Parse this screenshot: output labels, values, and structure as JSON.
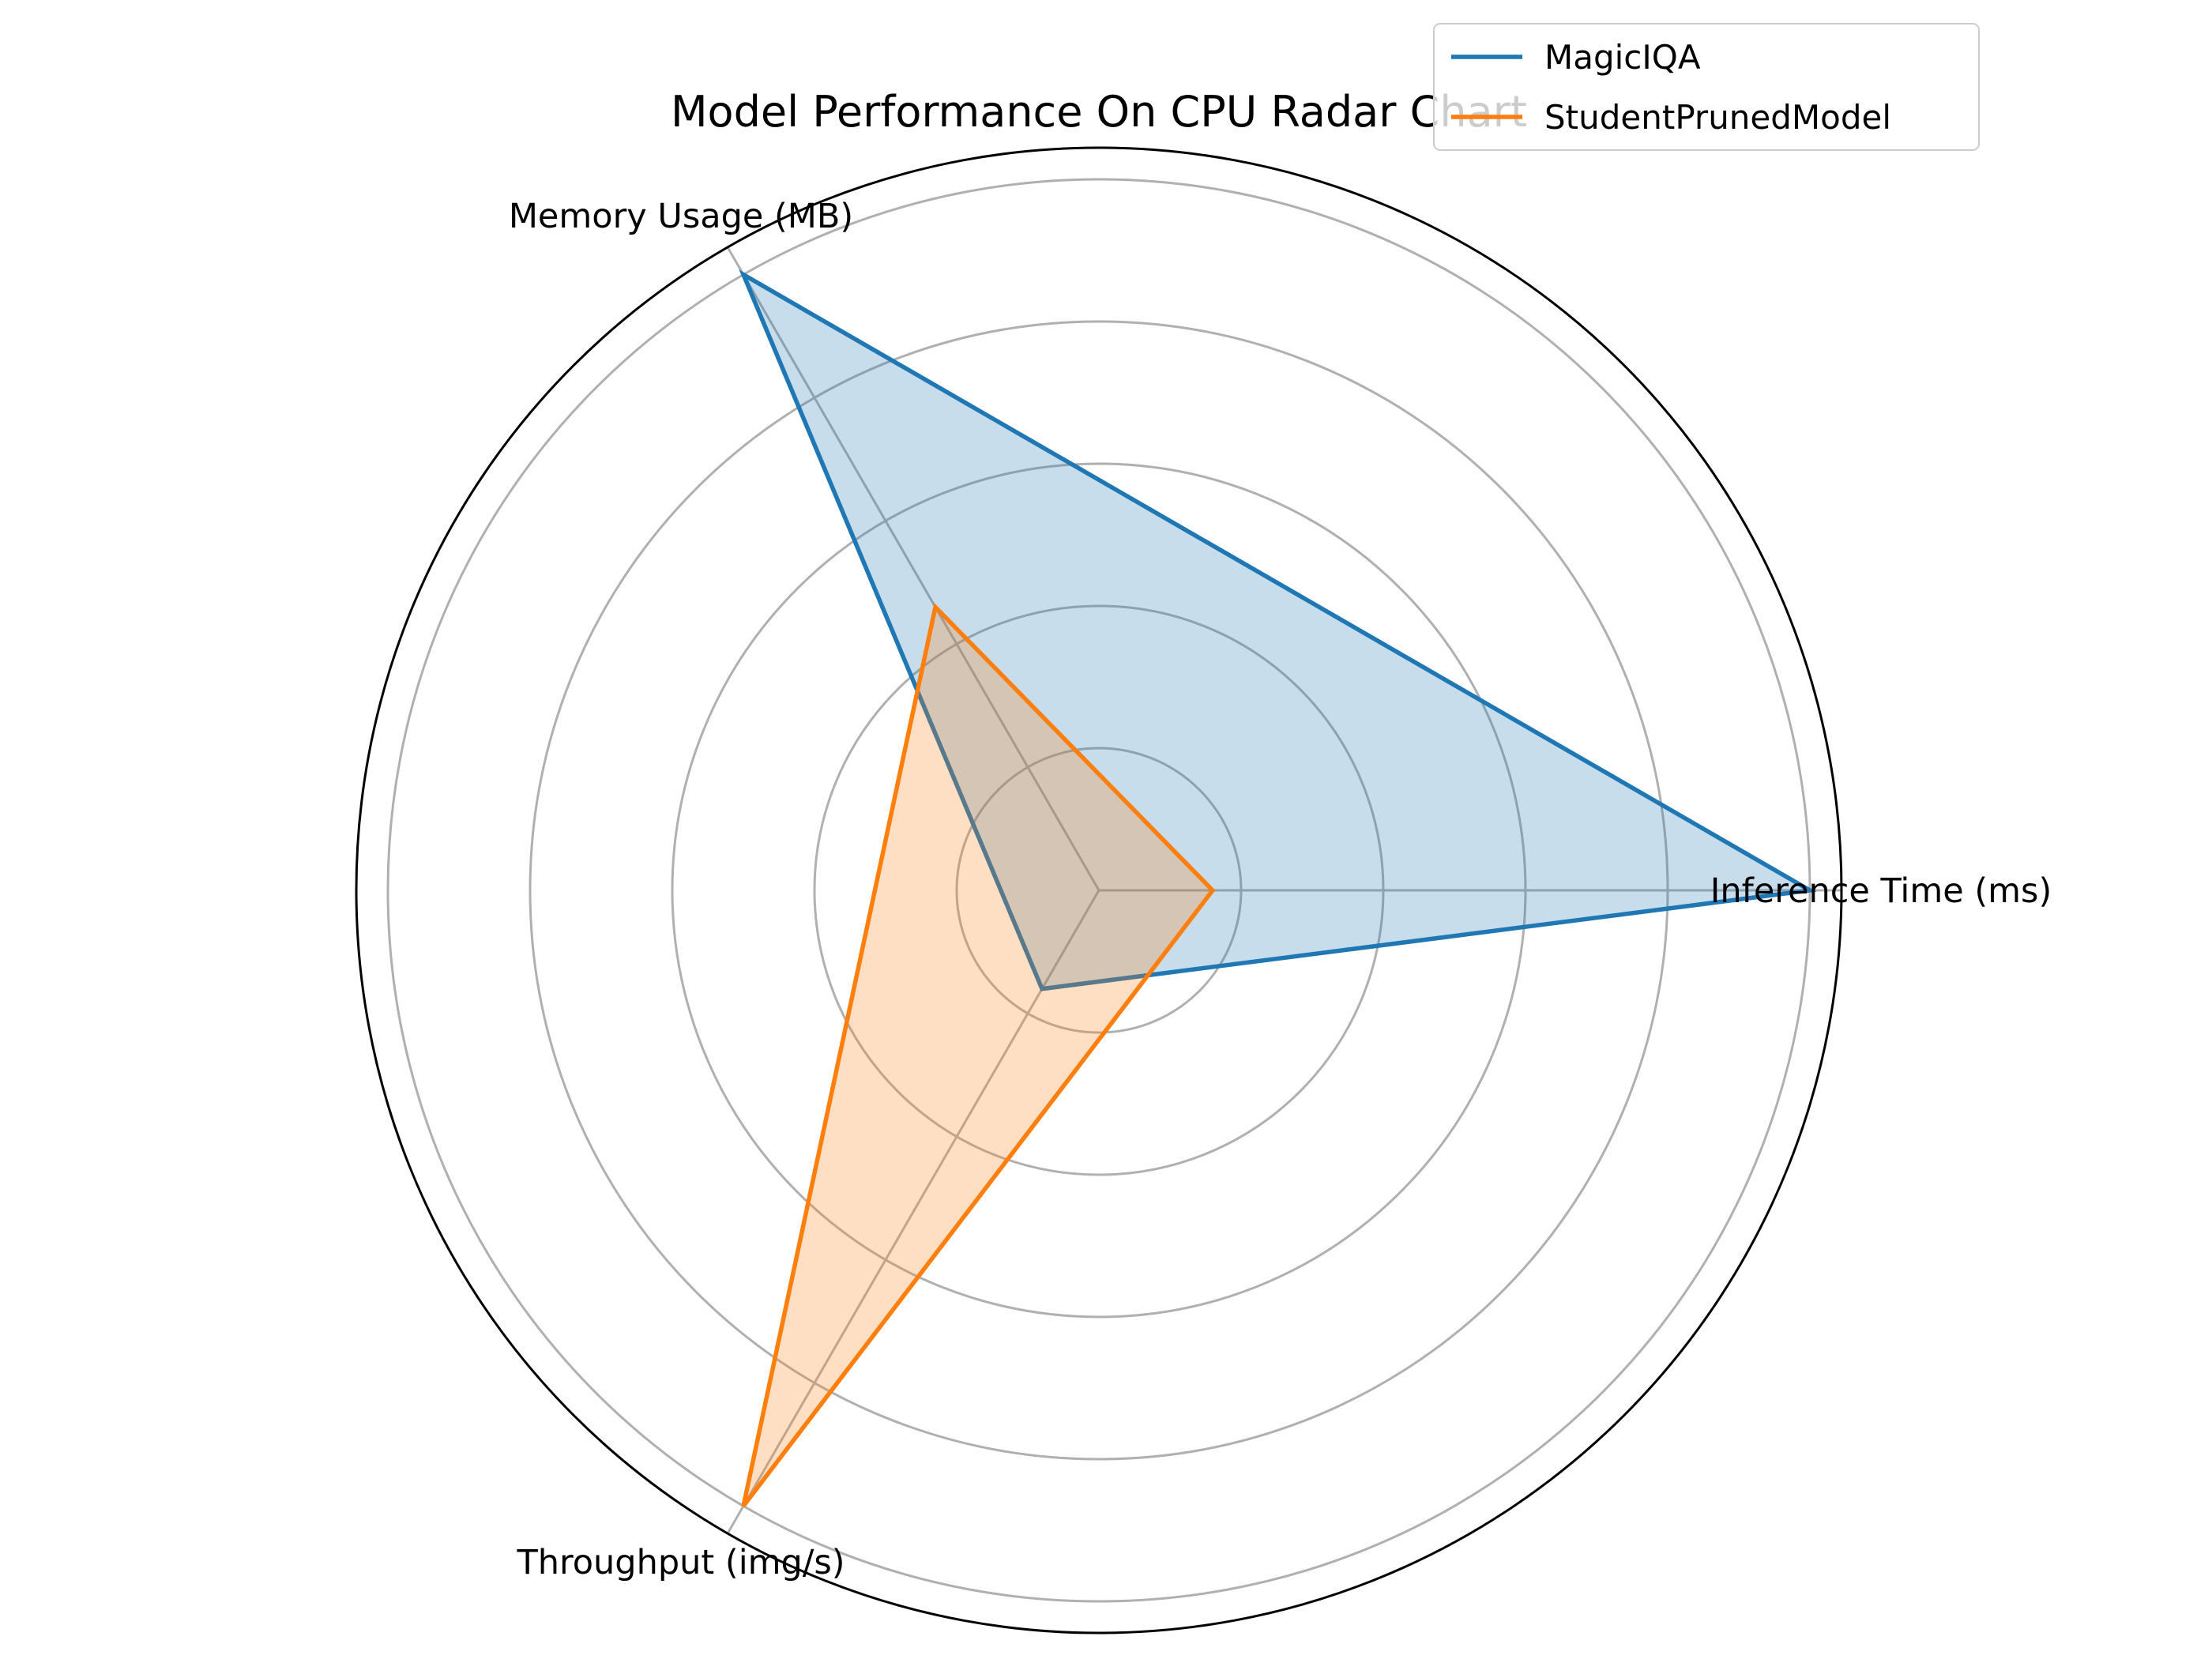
{
  "chart_data": {
    "type": "radar",
    "title": "Model Performance On CPU Radar Chart",
    "axes": [
      "Inference Time (ms)",
      "Memory Usage (MB)",
      "Throughput (img/s)"
    ],
    "rlim": [
      0,
      1
    ],
    "grid": true,
    "legend_position": "top-right",
    "series": [
      {
        "name": "MagicIQA",
        "color": "#1f77b4",
        "values": [
          1.0,
          1.0,
          0.16
        ]
      },
      {
        "name": "StudentPrunedModel",
        "color": "#ff7f0e",
        "values": [
          0.16,
          0.46,
          1.0
        ]
      }
    ]
  }
}
